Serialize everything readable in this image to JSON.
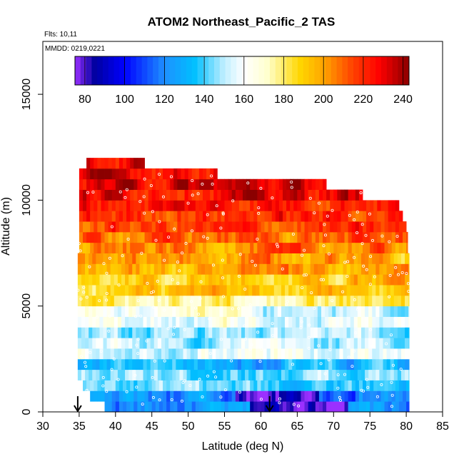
{
  "chart_data": {
    "type": "heatmap",
    "title": "ATOM2 Northeast_Pacific_2 TAS",
    "flights_label": "Flts: 10,11",
    "dates_label": "MMDD: 0219,0221",
    "xlabel": "Latitude (deg N)",
    "ylabel": "Altitude (m)",
    "xlim": [
      30,
      85
    ],
    "ylim": [
      0,
      17500
    ],
    "x_ticks": [
      30,
      35,
      40,
      45,
      50,
      55,
      60,
      65,
      70,
      75,
      80,
      85
    ],
    "y_ticks": [
      0,
      5000,
      10000,
      15000
    ],
    "colorbar": {
      "range": [
        75,
        243
      ],
      "ticks": [
        80,
        100,
        120,
        140,
        160,
        180,
        200,
        220,
        240
      ],
      "colors": [
        "#8a2be2",
        "#00008b",
        "#0000ff",
        "#1e90ff",
        "#00bfff",
        "#e0ffff",
        "#ffffe0",
        "#ffd700",
        "#ffa500",
        "#ff0000",
        "#b22222",
        "#8b0000"
      ]
    },
    "colorbar_stops": [
      [
        75,
        "#9b30ff"
      ],
      [
        85,
        "#0000a0"
      ],
      [
        100,
        "#0000ff"
      ],
      [
        120,
        "#1e90ff"
      ],
      [
        135,
        "#00bfff"
      ],
      [
        150,
        "#bfefff"
      ],
      [
        160,
        "#ffffff"
      ],
      [
        172,
        "#ffffcc"
      ],
      [
        188,
        "#ffd700"
      ],
      [
        200,
        "#ffa500"
      ],
      [
        215,
        "#ff4000"
      ],
      [
        228,
        "#ff0000"
      ],
      [
        243,
        "#8b0000"
      ]
    ],
    "lat_range": [
      34.8,
      80.4
    ],
    "bins_altitude_m": [
      250,
      750,
      1250,
      1750,
      2250,
      2750,
      3250,
      3750,
      4250,
      4750,
      5250,
      5750,
      6250,
      6750,
      7250,
      7750,
      8250,
      8750,
      9250,
      9750,
      10250,
      10750,
      11250,
      11750
    ],
    "mean_tas_by_altitude": [
      120,
      120,
      140,
      145,
      130,
      160,
      150,
      145,
      160,
      165,
      180,
      188,
      192,
      196,
      200,
      205,
      210,
      215,
      220,
      226,
      230,
      232,
      230,
      228
    ],
    "flight_ends": [
      {
        "latitude": 34.8,
        "altitude_m": 0
      },
      {
        "latitude": 61.2,
        "altitude_m": 0
      }
    ]
  }
}
